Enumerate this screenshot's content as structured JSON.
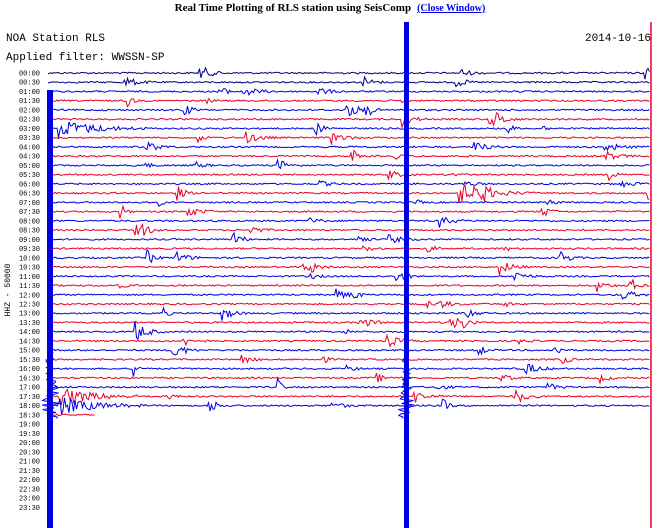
{
  "header": {
    "title": "Real Time Plotting of RLS station using SeisComp",
    "close_link": "(Close Window)"
  },
  "plot": {
    "station": "NOA Station RLS",
    "date": "2014-10-16",
    "filter": "Applied filter: WWSSN-SP",
    "channel_label": "HHZ - 50000",
    "row_labels": [
      "00:00",
      "00:30",
      "01:00",
      "01:30",
      "02:00",
      "02:30",
      "03:00",
      "03:30",
      "04:00",
      "04:30",
      "05:00",
      "05:30",
      "06:00",
      "06:30",
      "07:00",
      "07:30",
      "08:00",
      "08:30",
      "09:00",
      "09:30",
      "10:00",
      "10:30",
      "11:00",
      "11:30",
      "12:00",
      "12:30",
      "13:00",
      "13:30",
      "14:00",
      "14:30",
      "15:00",
      "15:30",
      "16:00",
      "16:30",
      "17:00",
      "17:30",
      "18:00",
      "18:30",
      "19:00",
      "19:30",
      "20:00",
      "20:30",
      "21:00",
      "21:30",
      "22:00",
      "22:30",
      "23:00",
      "23:30"
    ]
  }
}
